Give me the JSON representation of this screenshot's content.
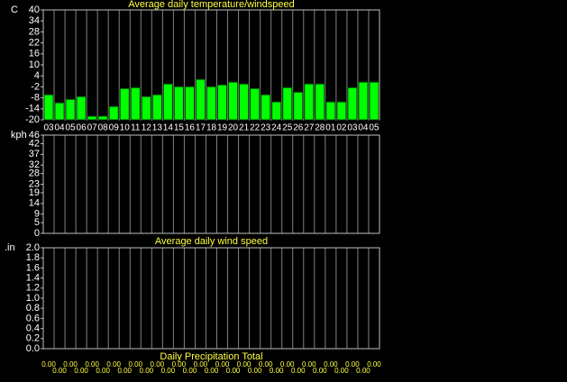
{
  "chart_data": [
    {
      "type": "bar",
      "title": "Average daily temperature/windspeed",
      "ylabel": "C",
      "categories": [
        "03",
        "04",
        "05",
        "06",
        "07",
        "08",
        "09",
        "10",
        "11",
        "12",
        "13",
        "14",
        "15",
        "16",
        "17",
        "18",
        "19",
        "20",
        "21",
        "22",
        "23",
        "24",
        "25",
        "26",
        "27",
        "28",
        "01",
        "02",
        "03",
        "04",
        "05"
      ],
      "values": [
        -6.3,
        -10.7,
        -8.8,
        -7.3,
        -18,
        -18,
        -12.7,
        -2.9,
        -2.4,
        -7.3,
        -6.3,
        -0.4,
        -1.9,
        -1.9,
        2.1,
        -1.9,
        -0.9,
        0.6,
        -0.4,
        -2.9,
        -6.3,
        -10.2,
        -2.4,
        -4.9,
        -0.4,
        -0.4,
        -10.2,
        -10.2,
        -2.4,
        0.6,
        0.6
      ],
      "color": "#00ff00",
      "ylim": [
        -20,
        40
      ],
      "yticks": [
        40,
        34,
        28,
        22,
        16,
        10,
        4,
        -2,
        -8,
        -14,
        -20
      ]
    },
    {
      "type": "bar",
      "title": "Average daily wind speed",
      "ylabel": "kph",
      "ylim": [
        0,
        46
      ],
      "yticks": [
        46,
        42,
        37,
        32,
        28,
        23,
        19,
        14,
        9,
        5,
        0
      ]
    },
    {
      "type": "bar",
      "title": "Daily Precipitation Total",
      "ylabel": ".in",
      "values": [
        0,
        0,
        0,
        0,
        0,
        0,
        0,
        0,
        0,
        0,
        0,
        0,
        0,
        0,
        0,
        0,
        0,
        0,
        0,
        0,
        0,
        0,
        0,
        0,
        0,
        0,
        0,
        0,
        0,
        0,
        0
      ],
      "value_labels": [
        "0.00",
        "0.00",
        "0.00",
        "0.00",
        "0.00",
        "0.00",
        "0.00",
        "0.00",
        "0.00",
        "0.00",
        "0.00",
        "0.00",
        "0.00",
        "0.00",
        "0.00",
        "0.00",
        "0.00",
        "0.00",
        "0.00",
        "0.00",
        "0.00",
        "0.00",
        "0.00",
        "0.00",
        "0.00",
        "0.00",
        "0.00",
        "0.00",
        "0.00",
        "0.00",
        "0.00"
      ],
      "color": "#00ff00",
      "ylim": [
        0,
        2
      ],
      "yticks": [
        {
          "value": 2,
          "label": "2.0"
        },
        {
          "value": 1.8,
          "label": "1.8"
        },
        {
          "value": 1.6,
          "label": "1.6"
        },
        {
          "value": 1.4,
          "label": "1.4"
        },
        {
          "value": 1.2,
          "label": "1.2"
        },
        {
          "value": 1,
          "label": "1.0"
        },
        {
          "value": 0.8,
          "label": "0.8"
        },
        {
          "value": 0.6,
          "label": "0.6"
        },
        {
          "value": 0.4,
          "label": "0.4"
        },
        {
          "value": 0.2,
          "label": "0.2"
        },
        {
          "value": 0,
          "label": "0.0"
        }
      ]
    }
  ]
}
